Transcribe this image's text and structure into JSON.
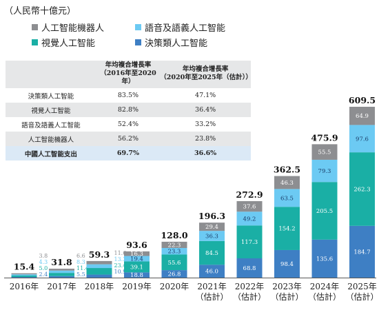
{
  "unit_label": "（人民幣十億元）",
  "legend": [
    {
      "label": "人工智能機器人",
      "color": "#8d8e91"
    },
    {
      "label": "語音及語義人工智能",
      "color": "#6ccaf3"
    },
    {
      "label": "視覺人工智能",
      "color": "#1aafa5"
    },
    {
      "label": "決策類人工智能",
      "color": "#3e7fc4"
    }
  ],
  "cagr_table": {
    "header_col1": "年均複合增長率\n（2016年至2020年）",
    "header_col2": "年均複合增長率\n（2020年至2025年（估計））",
    "rows": [
      {
        "name": "決策類人工智能",
        "cagr1": "83.5%",
        "cagr2": "47.1%"
      },
      {
        "name": "視覺人工智能",
        "cagr1": "82.8%",
        "cagr2": "36.4%"
      },
      {
        "name": "語音及語義人工智能",
        "cagr1": "52.4%",
        "cagr2": "33.2%"
      },
      {
        "name": "人工智能機器人",
        "cagr1": "56.2%",
        "cagr2": "23.8%"
      },
      {
        "name": "中國人工智能支出",
        "cagr1": "69.7%",
        "cagr2": "36.6%"
      }
    ]
  },
  "chart_data": {
    "type": "bar",
    "stacked": true,
    "categories": [
      "2016年",
      "2017年",
      "2018年",
      "2019年",
      "2020年",
      "2021年\n（估計）",
      "2022年\n（估計）",
      "2023年\n（估計）",
      "2024年\n（估計）",
      "2025年\n（估計）"
    ],
    "totals": [
      15.4,
      31.8,
      59.3,
      93.6,
      128.0,
      196.3,
      272.9,
      362.5,
      475.9,
      609.5
    ],
    "total_labels": [
      "15.4",
      "31.8",
      "59.3",
      "93.6",
      "128.0",
      "196.3",
      "272.9",
      "362.5",
      "475.9",
      "609.5"
    ],
    "series": [
      {
        "name": "決策類人工智能",
        "color": "#3e7fc4",
        "values": [
          2.4,
          5.5,
          10.9,
          18.8,
          26.8,
          46.0,
          68.8,
          98.4,
          135.6,
          184.7
        ],
        "labels": [
          "2.4",
          "5.5",
          "10.9",
          "18.8",
          "26.8",
          "46.0",
          "68.8",
          "98.4",
          "135.6",
          "184.7"
        ]
      },
      {
        "name": "視覺人工智能",
        "color": "#1aafa5",
        "values": [
          5.0,
          11.4,
          23.4,
          39.1,
          55.6,
          84.5,
          117.3,
          154.2,
          205.5,
          262.3
        ],
        "labels": [
          "5.0",
          "11.4",
          "23.4",
          "39.1",
          "55.6",
          "84.5",
          "117.3",
          "154.2",
          "205.5",
          "262.3"
        ]
      },
      {
        "name": "語音及語義人工智能",
        "color": "#6ccaf3",
        "values": [
          4.3,
          8.3,
          13.3,
          19.4,
          23.3,
          36.3,
          49.2,
          63.5,
          79.3,
          97.6
        ],
        "labels": [
          "4.3",
          "8.3",
          "13.3",
          "19.4",
          "23.3",
          "36.3",
          "49.2",
          "63.5",
          "79.3",
          "97.6"
        ]
      },
      {
        "name": "人工智能機器人",
        "color": "#8d8e91",
        "values": [
          3.8,
          6.6,
          11.6,
          16.3,
          22.3,
          29.4,
          37.6,
          46.3,
          55.5,
          64.9
        ],
        "labels": [
          "3.8",
          "6.6",
          "11.6",
          "16.3",
          "22.3",
          "29.4",
          "37.6",
          "46.3",
          "55.5",
          "64.9"
        ]
      }
    ]
  }
}
